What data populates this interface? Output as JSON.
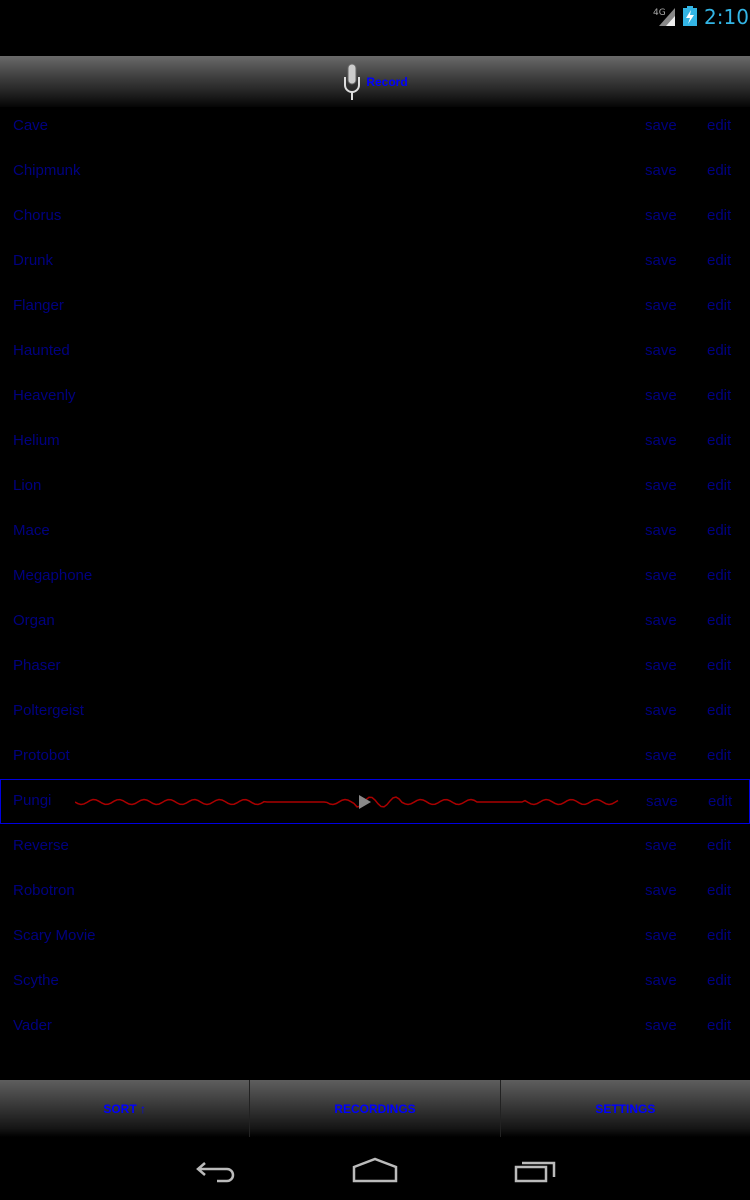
{
  "status_bar": {
    "network": "4G",
    "time": "2:10",
    "battery_icon": "battery-charging-icon"
  },
  "header": {
    "record_label": "Record",
    "icon": "microphone-icon"
  },
  "effects": [
    {
      "name": "Cave",
      "save": "save",
      "edit": "edit"
    },
    {
      "name": "Chipmunk",
      "save": "save",
      "edit": "edit"
    },
    {
      "name": "Chorus",
      "save": "save",
      "edit": "edit"
    },
    {
      "name": "Drunk",
      "save": "save",
      "edit": "edit"
    },
    {
      "name": "Flanger",
      "save": "save",
      "edit": "edit"
    },
    {
      "name": "Haunted",
      "save": "save",
      "edit": "edit"
    },
    {
      "name": "Heavenly",
      "save": "save",
      "edit": "edit"
    },
    {
      "name": "Helium",
      "save": "save",
      "edit": "edit"
    },
    {
      "name": "Lion",
      "save": "save",
      "edit": "edit"
    },
    {
      "name": "Mace",
      "save": "save",
      "edit": "edit"
    },
    {
      "name": "Megaphone",
      "save": "save",
      "edit": "edit"
    },
    {
      "name": "Organ",
      "save": "save",
      "edit": "edit"
    },
    {
      "name": "Phaser",
      "save": "save",
      "edit": "edit"
    },
    {
      "name": "Poltergeist",
      "save": "save",
      "edit": "edit"
    },
    {
      "name": "Protobot",
      "save": "save",
      "edit": "edit"
    },
    {
      "name": "Pungi",
      "save": "save",
      "edit": "edit",
      "active": true
    },
    {
      "name": "Reverse",
      "save": "save",
      "edit": "edit"
    },
    {
      "name": "Robotron",
      "save": "save",
      "edit": "edit"
    },
    {
      "name": "Scary Movie",
      "save": "save",
      "edit": "edit"
    },
    {
      "name": "Scythe",
      "save": "save",
      "edit": "edit"
    },
    {
      "name": "Vader",
      "save": "save",
      "edit": "edit"
    }
  ],
  "bottom_tabs": [
    {
      "label": "SORT ↑"
    },
    {
      "label": "RECORDINGS"
    },
    {
      "label": "SETTINGS"
    }
  ],
  "colors": {
    "text": "#000080",
    "accent": "#0000ff",
    "waveform": "#aa0000",
    "clock": "#33b5e5"
  }
}
